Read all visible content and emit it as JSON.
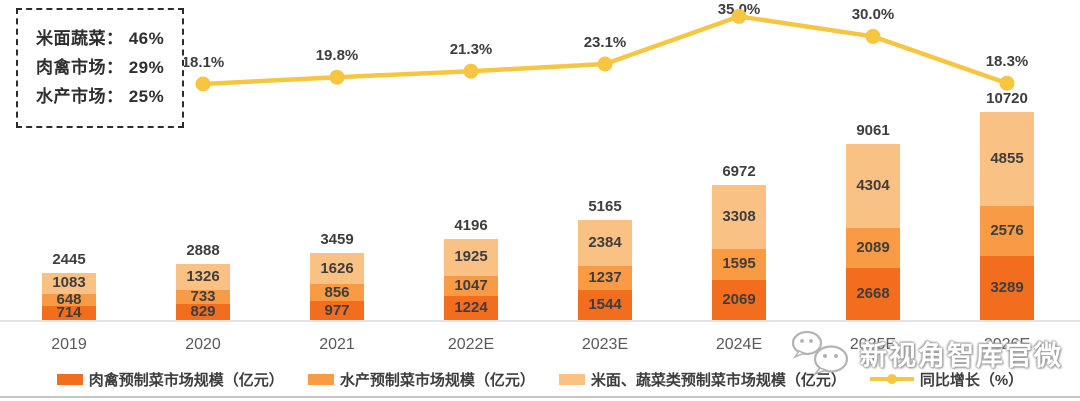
{
  "summary_box": {
    "items": [
      "米面蔬菜： 46%",
      "肉禽市场： 29%",
      "水产市场： 25%"
    ]
  },
  "chart_data": {
    "type": "bar",
    "subtype": "stacked-bars-with-growth-line",
    "categories": [
      "2019",
      "2020",
      "2021",
      "2022E",
      "2023E",
      "2024E",
      "2025E",
      "2026E"
    ],
    "series": [
      {
        "name": "肉禽预制菜市场规模（亿元）",
        "color": "#f36d1f",
        "values": [
          714,
          829,
          977,
          1224,
          1544,
          2069,
          2668,
          3289
        ]
      },
      {
        "name": "水产预制菜市场规模（亿元）",
        "color": "#f99a45",
        "values": [
          648,
          733,
          856,
          1047,
          1237,
          1595,
          2089,
          2576
        ]
      },
      {
        "name": "米面、蔬菜类预制菜市场规模（亿元）",
        "color": "#fac184",
        "values": [
          1083,
          1326,
          1626,
          1925,
          2384,
          3308,
          4304,
          4855
        ]
      }
    ],
    "totals": [
      2445,
      2888,
      3459,
      4196,
      5165,
      6972,
      9061,
      10720
    ],
    "line": {
      "name": "同比增长（%）",
      "color": "#f6c643",
      "values": [
        null,
        18.1,
        19.8,
        21.3,
        23.1,
        35.0,
        30.0,
        18.3
      ]
    },
    "ylim": [
      0,
      10720
    ],
    "grid": false,
    "legend_position": "bottom",
    "bar_label_color": "#3d3d3d"
  },
  "watermark": {
    "text": "新视角智库官微",
    "icon": "wechat-icon"
  }
}
